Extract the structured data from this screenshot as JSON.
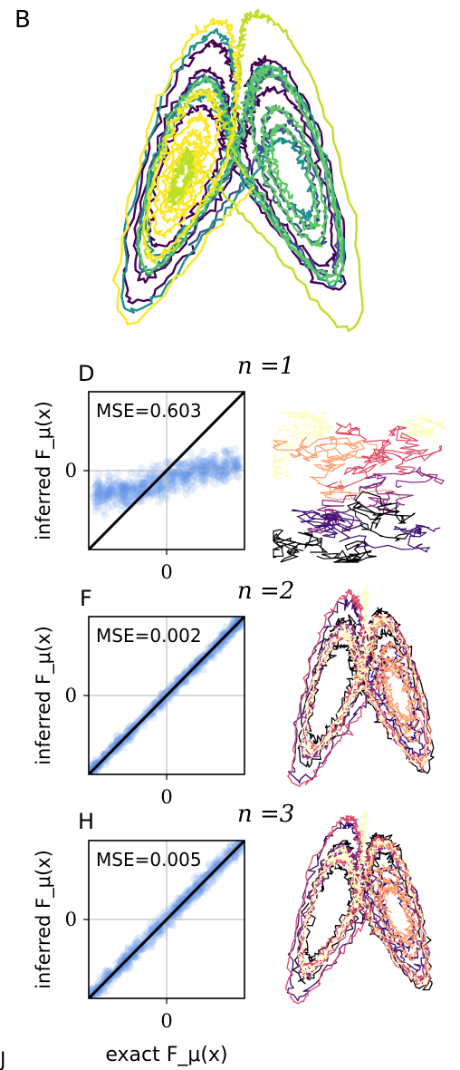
{
  "panels": {
    "b": {
      "label": "B"
    },
    "j": {
      "label": "J"
    }
  },
  "colors": {
    "scatter": "#6495ed",
    "diagonal": "#000000",
    "grid": "#b0b0b0",
    "viridis": [
      "#440154",
      "#3b528b",
      "#21918c",
      "#5ec962",
      "#bddf26",
      "#fde725"
    ],
    "magma": [
      "#000004",
      "#3b0f70",
      "#8c2981",
      "#de4968",
      "#fe9f6d",
      "#fcfdbf"
    ]
  },
  "chart_data": [
    {
      "type": "scatter",
      "panel_label": "D",
      "title_n": "n =1",
      "annotation": "MSE=0.603",
      "xlabel": "",
      "ylabel": "inferred F_μ(x)",
      "xticks": [
        "0"
      ],
      "yticks": [
        "0"
      ],
      "xlim": [
        -3,
        3
      ],
      "ylim": [
        -3,
        3
      ],
      "diagonal": true
    },
    {
      "type": "scatter",
      "panel_label": "F",
      "title_n": "n =2",
      "annotation": "MSE=0.002",
      "xlabel": "",
      "ylabel": "inferred F_μ(x)",
      "xticks": [
        "0"
      ],
      "yticks": [
        "0"
      ],
      "xlim": [
        -3,
        3
      ],
      "ylim": [
        -3,
        3
      ],
      "diagonal": true
    },
    {
      "type": "scatter",
      "panel_label": "H",
      "title_n": "n =3",
      "annotation": "MSE=0.005",
      "xlabel": "exact F_μ(x)",
      "ylabel": "inferred F_μ(x)",
      "xticks": [
        "0"
      ],
      "yticks": [
        "0"
      ],
      "xlim": [
        -3,
        3
      ],
      "ylim": [
        -3,
        3
      ],
      "diagonal": true
    }
  ],
  "trajectories": {
    "top": {
      "shape": "butterfly",
      "colormap": "viridis"
    },
    "panel_d": {
      "shape": "layers",
      "colormap": "magma"
    },
    "panel_f": {
      "shape": "butterfly",
      "colormap": "magma"
    },
    "panel_h": {
      "shape": "butterfly",
      "colormap": "magma"
    }
  }
}
